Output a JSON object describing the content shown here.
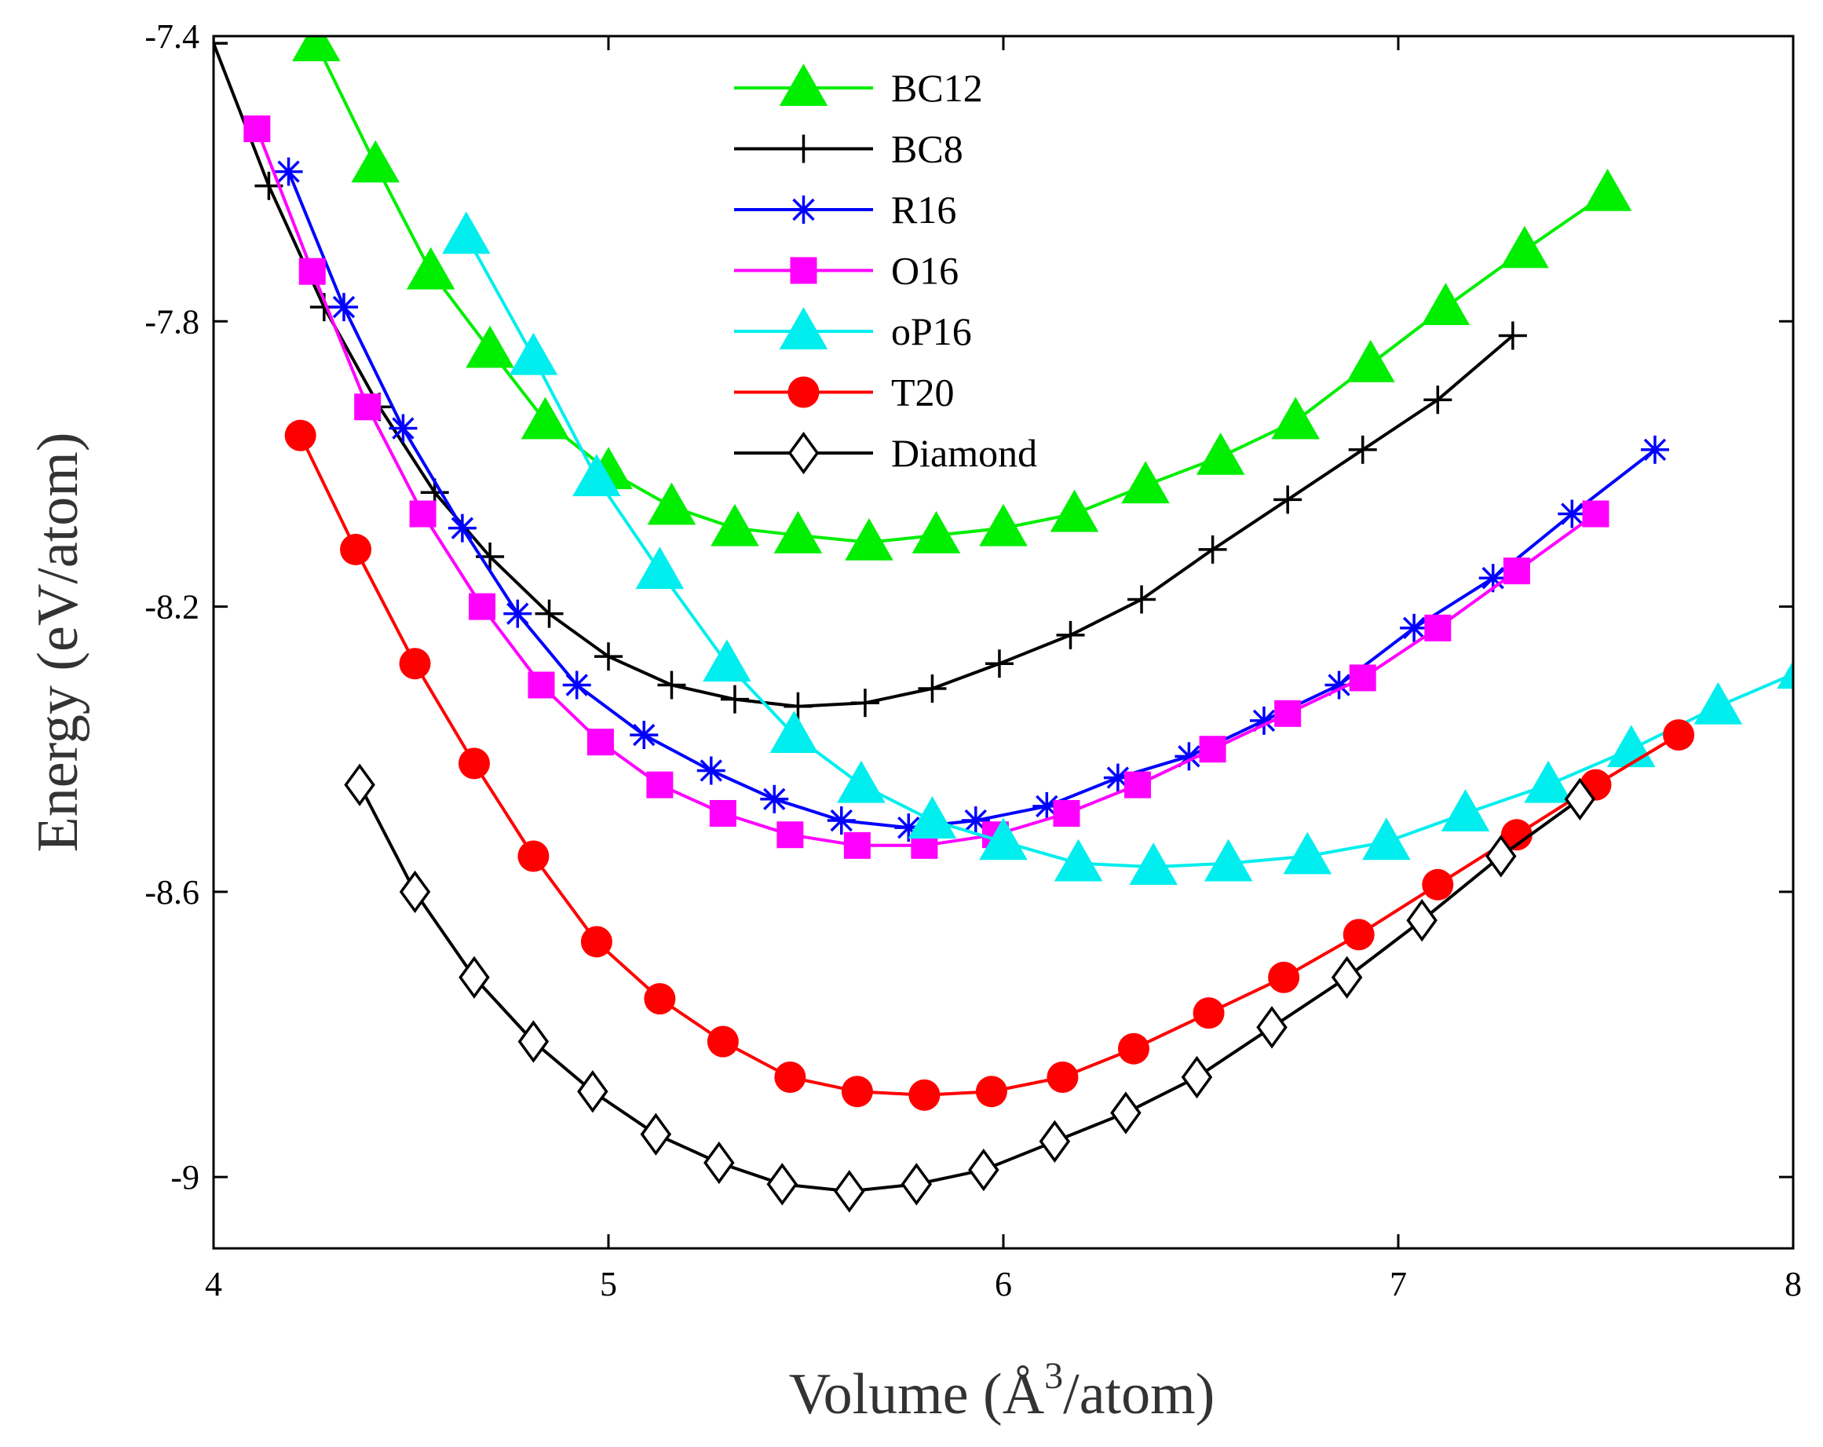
{
  "chart_data": {
    "type": "line",
    "title": "",
    "xlabel": {
      "main": "Volume (Å",
      "sup": "3",
      "tail": "/atom)"
    },
    "ylabel": "Energy (eV/atom)",
    "xlim": [
      4,
      8
    ],
    "ylim": [
      -9.1,
      -7.4
    ],
    "xticks": [
      4,
      5,
      6,
      7,
      8
    ],
    "xtick_labels": [
      "4",
      "5",
      "6",
      "7",
      "8"
    ],
    "yticks": [
      -7.4,
      -7.8,
      -8.2,
      -8.6,
      -9.0
    ],
    "ytick_labels": [
      "-7.4",
      "-7.8",
      "-8.2",
      "-8.6",
      "-9"
    ],
    "grid": false,
    "legend_position": "top-center",
    "series": [
      {
        "name": "BC12",
        "color": "#00ee00",
        "marker": "triangle",
        "x": [
          4.26,
          4.41,
          4.55,
          4.7,
          4.84,
          5.0,
          5.16,
          5.32,
          5.48,
          5.66,
          5.83,
          6.0,
          6.18,
          6.36,
          6.55,
          6.74,
          6.93,
          7.12,
          7.32,
          7.53
        ],
        "y": [
          -7.41,
          -7.58,
          -7.73,
          -7.84,
          -7.94,
          -8.01,
          -8.06,
          -8.09,
          -8.1,
          -8.11,
          -8.1,
          -8.09,
          -8.07,
          -8.03,
          -7.99,
          -7.94,
          -7.86,
          -7.78,
          -7.7,
          -7.62
        ]
      },
      {
        "name": "BC8",
        "color": "#000000",
        "marker": "plus",
        "x": [
          4.0,
          4.14,
          4.28,
          4.42,
          4.56,
          4.7,
          4.85,
          5.0,
          5.16,
          5.32,
          5.48,
          5.65,
          5.82,
          5.99,
          6.17,
          6.35,
          6.53,
          6.72,
          6.91,
          7.1,
          7.29
        ],
        "y": [
          -7.41,
          -7.61,
          -7.78,
          -7.92,
          -8.04,
          -8.13,
          -8.21,
          -8.27,
          -8.31,
          -8.33,
          -8.34,
          -8.335,
          -8.315,
          -8.28,
          -8.24,
          -8.19,
          -8.12,
          -8.05,
          -7.98,
          -7.91,
          -7.82
        ]
      },
      {
        "name": "R16",
        "color": "#0000ff",
        "marker": "asterisk",
        "x": [
          4.19,
          4.33,
          4.48,
          4.63,
          4.77,
          4.92,
          5.09,
          5.26,
          5.42,
          5.59,
          5.76,
          5.93,
          6.11,
          6.29,
          6.47,
          6.66,
          6.85,
          7.04,
          7.24,
          7.44,
          7.65
        ],
        "y": [
          -7.59,
          -7.78,
          -7.95,
          -8.09,
          -8.21,
          -8.31,
          -8.38,
          -8.43,
          -8.47,
          -8.5,
          -8.51,
          -8.5,
          -8.48,
          -8.44,
          -8.41,
          -8.36,
          -8.31,
          -8.23,
          -8.16,
          -8.07,
          -7.98
        ]
      },
      {
        "name": "O16",
        "color": "#ff00ff",
        "marker": "square",
        "x": [
          4.11,
          4.25,
          4.39,
          4.53,
          4.68,
          4.83,
          4.98,
          5.13,
          5.29,
          5.46,
          5.63,
          5.8,
          5.98,
          6.16,
          6.34,
          6.53,
          6.72,
          6.91,
          7.1,
          7.3,
          7.5
        ],
        "y": [
          -7.53,
          -7.73,
          -7.92,
          -8.07,
          -8.2,
          -8.31,
          -8.39,
          -8.45,
          -8.49,
          -8.52,
          -8.535,
          -8.535,
          -8.52,
          -8.49,
          -8.45,
          -8.4,
          -8.35,
          -8.3,
          -8.23,
          -8.15,
          -8.07
        ]
      },
      {
        "name": "oP16",
        "color": "#00eeee",
        "marker": "triangle",
        "x": [
          4.64,
          4.81,
          4.97,
          5.13,
          5.3,
          5.47,
          5.64,
          5.82,
          6.0,
          6.19,
          6.38,
          6.57,
          6.77,
          6.97,
          7.17,
          7.38,
          7.59,
          7.81,
          8.02
        ],
        "y": [
          -7.68,
          -7.85,
          -8.02,
          -8.15,
          -8.28,
          -8.38,
          -8.45,
          -8.5,
          -8.53,
          -8.56,
          -8.565,
          -8.56,
          -8.55,
          -8.53,
          -8.49,
          -8.45,
          -8.4,
          -8.34,
          -8.29
        ]
      },
      {
        "name": "T20",
        "color": "#ff0000",
        "marker": "circle",
        "x": [
          4.22,
          4.36,
          4.51,
          4.66,
          4.81,
          4.97,
          5.13,
          5.29,
          5.46,
          5.63,
          5.8,
          5.97,
          6.15,
          6.33,
          6.52,
          6.71,
          6.9,
          7.1,
          7.3,
          7.5,
          7.71
        ],
        "y": [
          -7.96,
          -8.12,
          -8.28,
          -8.42,
          -8.55,
          -8.67,
          -8.75,
          -8.81,
          -8.86,
          -8.88,
          -8.885,
          -8.88,
          -8.86,
          -8.82,
          -8.77,
          -8.72,
          -8.66,
          -8.59,
          -8.52,
          -8.45,
          -8.38
        ]
      },
      {
        "name": "Diamond",
        "color": "#000000",
        "marker": "diamond",
        "x": [
          4.37,
          4.51,
          4.66,
          4.81,
          4.96,
          5.12,
          5.28,
          5.44,
          5.61,
          5.78,
          5.95,
          6.13,
          6.31,
          6.49,
          6.68,
          6.87,
          7.06,
          7.26,
          7.46
        ],
        "y": [
          -8.45,
          -8.6,
          -8.72,
          -8.81,
          -8.88,
          -8.94,
          -8.98,
          -9.01,
          -9.02,
          -9.01,
          -8.99,
          -8.95,
          -8.91,
          -8.86,
          -8.79,
          -8.72,
          -8.64,
          -8.55,
          -8.47
        ]
      }
    ]
  }
}
